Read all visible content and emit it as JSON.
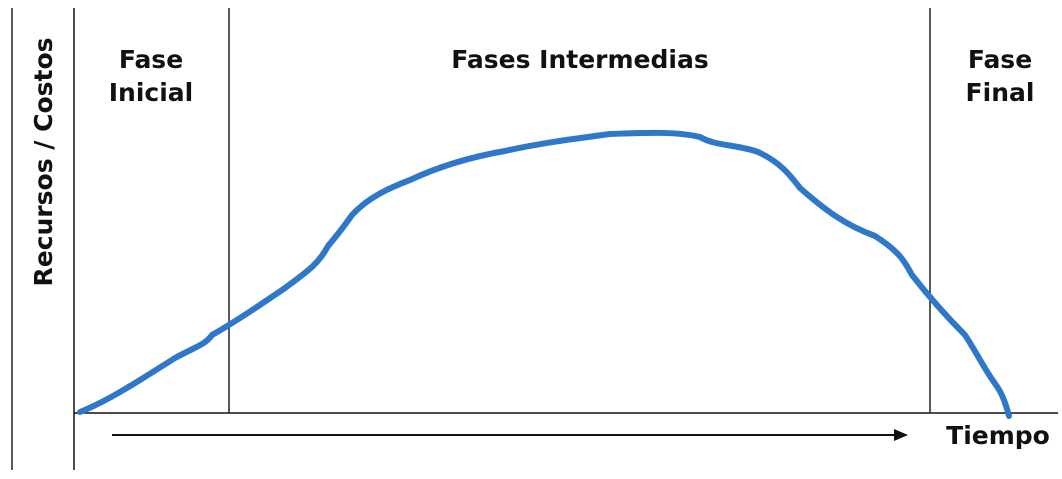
{
  "y_axis_label": "Recursos / Costos",
  "x_axis_label": "Tiempo",
  "phases": [
    {
      "line1": "Fase",
      "line2": "Inicial"
    },
    {
      "line1": "Fases Intermedias",
      "line2": ""
    },
    {
      "line1": "Fase",
      "line2": "Final"
    }
  ],
  "colors": {
    "curve": "#2f77c8",
    "axes": "#111111",
    "dividers": "#222222"
  }
}
